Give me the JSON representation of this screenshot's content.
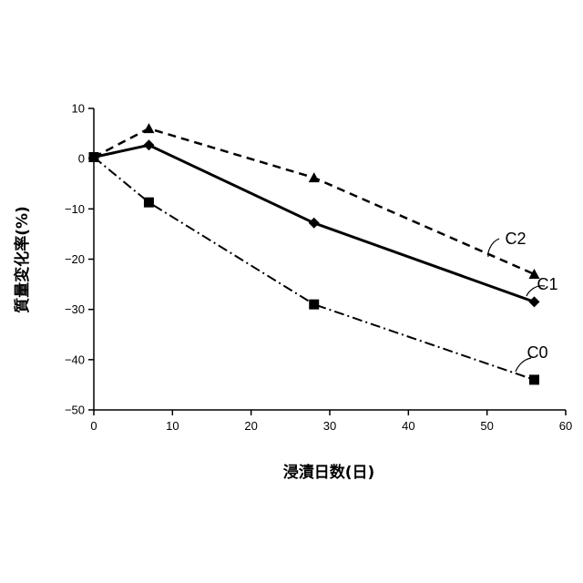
{
  "chart_data": {
    "type": "line",
    "title": "",
    "xlabel": "浸漬日数(日)",
    "ylabel": "質量変化率(%)",
    "xlim": [
      0,
      60
    ],
    "ylim": [
      -50,
      10
    ],
    "x_ticks": [
      0,
      10,
      20,
      30,
      40,
      50,
      60
    ],
    "y_ticks": [
      10,
      0,
      -10,
      -20,
      -30,
      -40,
      -50
    ],
    "x_tick_labels": [
      "0",
      "10",
      "20",
      "30",
      "40",
      "50",
      "60"
    ],
    "y_tick_labels": [
      "10",
      "0",
      "−10",
      "−20",
      "−30",
      "−40",
      "−50"
    ],
    "grid": false,
    "legend": "none",
    "series": [
      {
        "name": "C2",
        "x": [
          0,
          7,
          28,
          56
        ],
        "y": [
          0.3,
          6.0,
          -3.8,
          -23.0
        ],
        "marker": "triangle",
        "line": "dashed",
        "color": "#000000"
      },
      {
        "name": "C1",
        "x": [
          0,
          7,
          28,
          56
        ],
        "y": [
          0.3,
          2.7,
          -12.8,
          -28.5
        ],
        "marker": "diamond",
        "line": "solid",
        "color": "#000000"
      },
      {
        "name": "C0",
        "x": [
          0,
          7,
          28,
          56
        ],
        "y": [
          0.3,
          -8.7,
          -29.0,
          -44.0
        ],
        "marker": "square",
        "line": "dashdot",
        "color": "#000000"
      }
    ]
  }
}
